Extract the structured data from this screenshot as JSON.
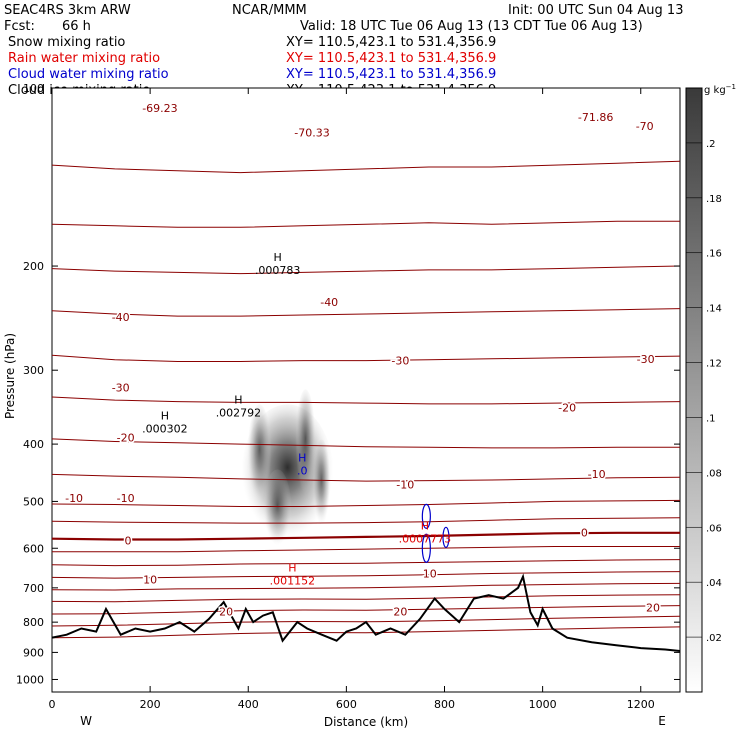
{
  "header": {
    "model": "SEAC4RS  3km ARW",
    "org": "NCAR/MMM",
    "init": "Init: 00 UTC Sun 04 Aug 13",
    "fcst_label": "Fcst:",
    "fcst_value": "66 h",
    "valid": "Valid: 18 UTC Tue 06 Aug 13 (13 CDT Tue 06 Aug 13)"
  },
  "legend": [
    {
      "name": "Snow mixing ratio",
      "xy": "XY=  110.5,423.1  to  531.4,356.9",
      "color": "#000000"
    },
    {
      "name": "Rain water mixing ratio",
      "xy": "XY=  110.5,423.1  to  531.4,356.9",
      "color": "#e00000"
    },
    {
      "name": "Cloud water mixing ratio",
      "xy": "XY=  110.5,423.1  to  531.4,356.9",
      "color": "#0000cc"
    },
    {
      "name": "Cloud ice mixing ratio",
      "xy": "XY=  110.5,423.1  to  531.4,356.9",
      "color": "#000000"
    }
  ],
  "colors": {
    "temperature_contour": "#8b0000",
    "terrain": "#000000",
    "rain": "#e00000",
    "cloud_water": "#0000cc"
  },
  "chart_data": {
    "type": "cross-section",
    "xlabel": "Distance (km)",
    "ylabel": "Pressure (hPa)",
    "xlim": [
      0,
      1280
    ],
    "ylim": [
      1050,
      100
    ],
    "y_scale": "log",
    "x_ticks": [
      "0",
      "200",
      "400",
      "600",
      "800",
      "1000",
      "1200"
    ],
    "y_ticks": [
      "100",
      "200",
      "300",
      "400",
      "500",
      "600",
      "700",
      "800",
      "900",
      "1000"
    ],
    "end_labels": {
      "left": "W",
      "right": "E"
    },
    "colorbar": {
      "unit": "g kg",
      "unit_exp": "−1",
      "ticks": [
        ".02",
        ".04",
        ".06",
        ".08",
        ".1",
        ".12",
        ".14",
        ".16",
        ".18",
        ".2"
      ]
    },
    "temperature_contours": [
      {
        "t": -70,
        "p": [
          135,
          137,
          138,
          139,
          138,
          137,
          136,
          136,
          135,
          134,
          133
        ]
      },
      {
        "t": -60,
        "p": [
          170,
          171,
          172,
          172,
          171,
          170,
          169,
          170,
          169,
          168,
          168
        ]
      },
      {
        "t": -50,
        "p": [
          202,
          204,
          205,
          206,
          205,
          204,
          203,
          203,
          202,
          201,
          200
        ]
      },
      {
        "t": -40,
        "p": [
          238,
          241,
          243,
          243,
          242,
          241,
          240,
          239,
          238,
          237,
          236
        ]
      },
      {
        "t": -30,
        "p": [
          283,
          288,
          290,
          290,
          289,
          289,
          288,
          287,
          286,
          285,
          284
        ]
      },
      {
        "t": -20,
        "p": [
          333,
          337,
          339,
          340,
          340,
          341,
          342,
          342,
          341,
          340,
          339
        ]
      },
      {
        "t": -10,
        "p": [
          392,
          396,
          398,
          400,
          402,
          404,
          405,
          406,
          406,
          405,
          405
        ]
      },
      {
        "t": -10,
        "p": [
          450,
          453,
          455,
          458,
          460,
          462,
          461,
          460,
          458,
          456,
          455
        ]
      },
      {
        "t": -10,
        "p": [
          505,
          506,
          508,
          510,
          510,
          508,
          506,
          503,
          500,
          499,
          498
        ]
      },
      {
        "t": 0,
        "p": [
          540,
          542,
          543,
          544,
          544,
          543,
          541,
          538,
          535,
          534,
          533
        ]
      },
      {
        "t": 0,
        "p": [
          578,
          580,
          580,
          578,
          576,
          574,
          572,
          569,
          566,
          565,
          565
        ]
      },
      {
        "t": 0,
        "p": [
          608,
          608,
          608,
          606,
          604,
          602,
          600,
          598,
          596,
          596,
          596
        ]
      },
      {
        "t": 10,
        "p": [
          640,
          642,
          641,
          638,
          637,
          636,
          634,
          632,
          630,
          628,
          627
        ]
      },
      {
        "t": 10,
        "p": [
          672,
          674,
          672,
          670,
          669,
          668,
          665,
          662,
          660,
          658,
          657
        ]
      },
      {
        "t": 10,
        "p": [
          705,
          706,
          703,
          702,
          701,
          700,
          697,
          693,
          691,
          689,
          688
        ]
      },
      {
        "t": 20,
        "p": [
          738,
          739,
          735,
          732,
          731,
          732,
          729,
          725,
          722,
          720,
          719
        ]
      },
      {
        "t": 20,
        "p": [
          775,
          774,
          770,
          765,
          763,
          764,
          761,
          758,
          755,
          752,
          750
        ]
      },
      {
        "t": 20,
        "p": [
          812,
          810,
          805,
          800,
          798,
          799,
          796,
          792,
          788,
          785,
          782
        ]
      },
      {
        "t": 20,
        "p": [
          850,
          848,
          842,
          836,
          833,
          834,
          830,
          826,
          822,
          818,
          815
        ]
      }
    ],
    "contour_x": [
      0,
      128,
      256,
      384,
      512,
      640,
      768,
      896,
      1024,
      1152,
      1280
    ],
    "contour_labels": [
      {
        "text": "-69.23",
        "x": 220,
        "p": 108
      },
      {
        "text": "-70.33",
        "x": 530,
        "p": 119
      },
      {
        "text": "-71.86",
        "x": 1108,
        "p": 112
      },
      {
        "text": "-70",
        "x": 1208,
        "p": 116
      },
      {
        "text": "-40",
        "x": 140,
        "p": 244
      },
      {
        "text": "-40",
        "x": 565,
        "p": 230
      },
      {
        "text": "-30",
        "x": 140,
        "p": 321
      },
      {
        "text": "-30",
        "x": 710,
        "p": 289
      },
      {
        "text": "-30",
        "x": 1210,
        "p": 287
      },
      {
        "text": "-20",
        "x": 150,
        "p": 390
      },
      {
        "text": "-20",
        "x": 1050,
        "p": 347
      },
      {
        "text": "-10",
        "x": 45,
        "p": 493
      },
      {
        "text": "-10",
        "x": 150,
        "p": 493
      },
      {
        "text": "-10",
        "x": 720,
        "p": 468
      },
      {
        "text": "-10",
        "x": 1110,
        "p": 449
      },
      {
        "text": "0",
        "x": 155,
        "p": 582
      },
      {
        "text": "0",
        "x": 1085,
        "p": 564
      },
      {
        "text": "10",
        "x": 200,
        "p": 678
      },
      {
        "text": "10",
        "x": 770,
        "p": 662
      },
      {
        "text": "20",
        "x": 355,
        "p": 767
      },
      {
        "text": "20",
        "x": 1225,
        "p": 756
      },
      {
        "text": "20",
        "x": 710,
        "p": 768
      }
    ],
    "maxima_labels": [
      {
        "text": ".000783",
        "x": 460,
        "p": 204,
        "color": "#000000"
      },
      {
        "text": ".002792",
        "x": 380,
        "p": 355,
        "color": "#000000"
      },
      {
        "text": ".000302",
        "x": 230,
        "p": 378,
        "color": "#000000"
      },
      {
        "text": ".0",
        "x": 510,
        "p": 445,
        "color": "#0000cc"
      },
      {
        "text": ".0007773",
        "x": 760,
        "p": 580,
        "color": "#e00000"
      },
      {
        "text": ".001152",
        "x": 490,
        "p": 683,
        "color": "#e00000"
      }
    ],
    "snow_field": {
      "center_x": 480,
      "center_p": 450,
      "max": 0.2
    },
    "terrain": {
      "x": [
        0,
        30,
        60,
        90,
        110,
        140,
        170,
        200,
        230,
        260,
        290,
        320,
        350,
        380,
        395,
        410,
        430,
        450,
        470,
        500,
        520,
        550,
        580,
        600,
        620,
        640,
        660,
        690,
        720,
        750,
        780,
        800,
        830,
        860,
        890,
        920,
        950,
        960,
        975,
        990,
        1000,
        1020,
        1050,
        1100,
        1150,
        1200,
        1250,
        1280
      ],
      "p": [
        850,
        840,
        820,
        830,
        760,
        840,
        820,
        830,
        820,
        800,
        830,
        790,
        740,
        820,
        760,
        800,
        780,
        770,
        860,
        800,
        820,
        840,
        860,
        830,
        820,
        800,
        840,
        820,
        840,
        790,
        730,
        760,
        800,
        730,
        720,
        730,
        700,
        670,
        770,
        810,
        760,
        820,
        850,
        865,
        875,
        885,
        890,
        895
      ]
    }
  }
}
